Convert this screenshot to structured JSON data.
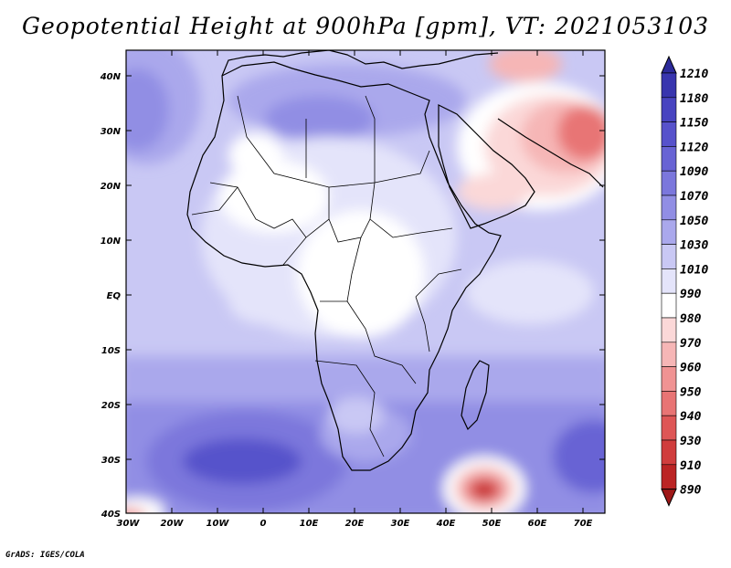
{
  "title": "Geopotential Height at 900hPa [gpm], VT: 2021053103",
  "credit": "GrADS: IGES/COLA",
  "map": {
    "variable": "Geopotential Height",
    "level": "900hPa",
    "units": "gpm",
    "valid_time": "2021053103",
    "lat_ticks": [
      "40N",
      "30N",
      "20N",
      "10N",
      "EQ",
      "10S",
      "20S",
      "30S",
      "40S"
    ],
    "lon_ticks": [
      "30W",
      "20W",
      "10W",
      "0",
      "10E",
      "20E",
      "30E",
      "40E",
      "50E",
      "60E",
      "70E"
    ]
  },
  "colorbar": {
    "levels": [
      "1210",
      "1180",
      "1150",
      "1120",
      "1090",
      "1070",
      "1050",
      "1030",
      "1010",
      "990",
      "980",
      "970",
      "960",
      "950",
      "940",
      "930",
      "910",
      "890"
    ],
    "colors": [
      "#2c2a9a",
      "#3835ae",
      "#4844c0",
      "#5752cb",
      "#6863d4",
      "#7b77dc",
      "#918ee4",
      "#aaa8ec",
      "#c9c8f4",
      "#e4e4fa",
      "#ffffff",
      "#fbd8d8",
      "#f6b6b6",
      "#f09393",
      "#e87474",
      "#de5656",
      "#d03d3d",
      "#bb2424",
      "#9e1818"
    ]
  }
}
